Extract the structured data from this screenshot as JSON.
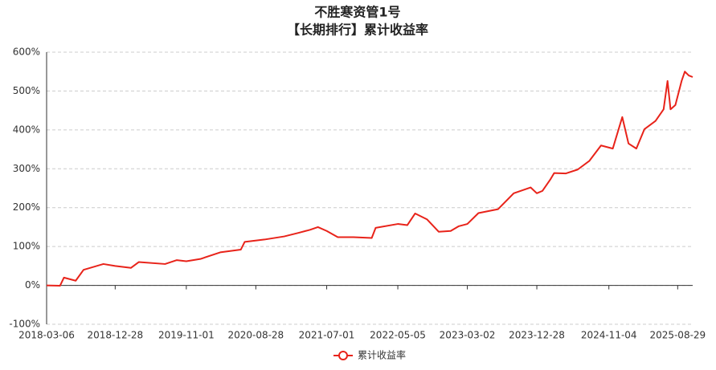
{
  "chart_data": {
    "type": "line",
    "title": "不胜寒资管1号",
    "subtitle": "【长期排行】累计收益率",
    "x": [
      "2018-03-06",
      "2018-05-03",
      "2018-05-20",
      "2018-07-10",
      "2018-08-13",
      "2018-11-07",
      "2018-12-28",
      "2019-03-06",
      "2019-04-09",
      "2019-08-01",
      "2019-09-21",
      "2019-11-01",
      "2020-01-01",
      "2020-03-27",
      "2020-06-24",
      "2020-07-11",
      "2020-10-05",
      "2020-12-29",
      "2021-02-28",
      "2021-04-20",
      "2021-05-24",
      "2021-07-01",
      "2021-08-18",
      "2021-10-25",
      "2022-01-12",
      "2022-01-29",
      "2022-05-05",
      "2022-06-15",
      "2022-07-19",
      "2022-09-08",
      "2022-10-29",
      "2022-12-20",
      "2023-01-23",
      "2023-03-02",
      "2023-04-19",
      "2023-07-13",
      "2023-09-19",
      "2023-12-01",
      "2023-12-28",
      "2024-01-21",
      "2024-02-24",
      "2024-03-12",
      "2024-05-02",
      "2024-06-22",
      "2024-08-11",
      "2024-10-01",
      "2024-11-21",
      "2025-01-01",
      "2025-01-28",
      "2025-03-03",
      "2025-04-07",
      "2025-05-25",
      "2025-06-29",
      "2025-07-16",
      "2025-07-29",
      "2025-08-19",
      "2025-09-15",
      "2025-09-29",
      "2025-10-16",
      "2025-11-02"
    ],
    "series": [
      {
        "name": "累计收益率",
        "color": "#e8231a",
        "values": [
          0,
          -1,
          20,
          12,
          40,
          55,
          50,
          45,
          60,
          55,
          65,
          62,
          68,
          85,
          92,
          112,
          118,
          126,
          135,
          143,
          150,
          140,
          124,
          124,
          122,
          148,
          158,
          155,
          185,
          170,
          138,
          140,
          152,
          158,
          186,
          196,
          237,
          252,
          237,
          243,
          272,
          289,
          288,
          298,
          320,
          360,
          352,
          433,
          365,
          352,
          402,
          423,
          453,
          526,
          453,
          464,
          526,
          550,
          540,
          536
        ]
      }
    ],
    "xlim": [
      "2018-03-06",
      "2025-11-02"
    ],
    "xticks": [
      "2018-03-06",
      "2018-12-28",
      "2019-11-01",
      "2020-08-28",
      "2021-07-01",
      "2022-05-05",
      "2023-03-02",
      "2023-12-28",
      "2024-11-04",
      "2025-08-29"
    ],
    "ylim": [
      -100,
      600
    ],
    "yticks": [
      {
        "value": -100,
        "label": "-100%"
      },
      {
        "value": 0,
        "label": "0%"
      },
      {
        "value": 100,
        "label": "100%"
      },
      {
        "value": 200,
        "label": "200%"
      },
      {
        "value": 300,
        "label": "300%"
      },
      {
        "value": 400,
        "label": "400%"
      },
      {
        "value": 500,
        "label": "500%"
      },
      {
        "value": 600,
        "label": "600%"
      }
    ],
    "grid": true,
    "legend": "bottom"
  }
}
